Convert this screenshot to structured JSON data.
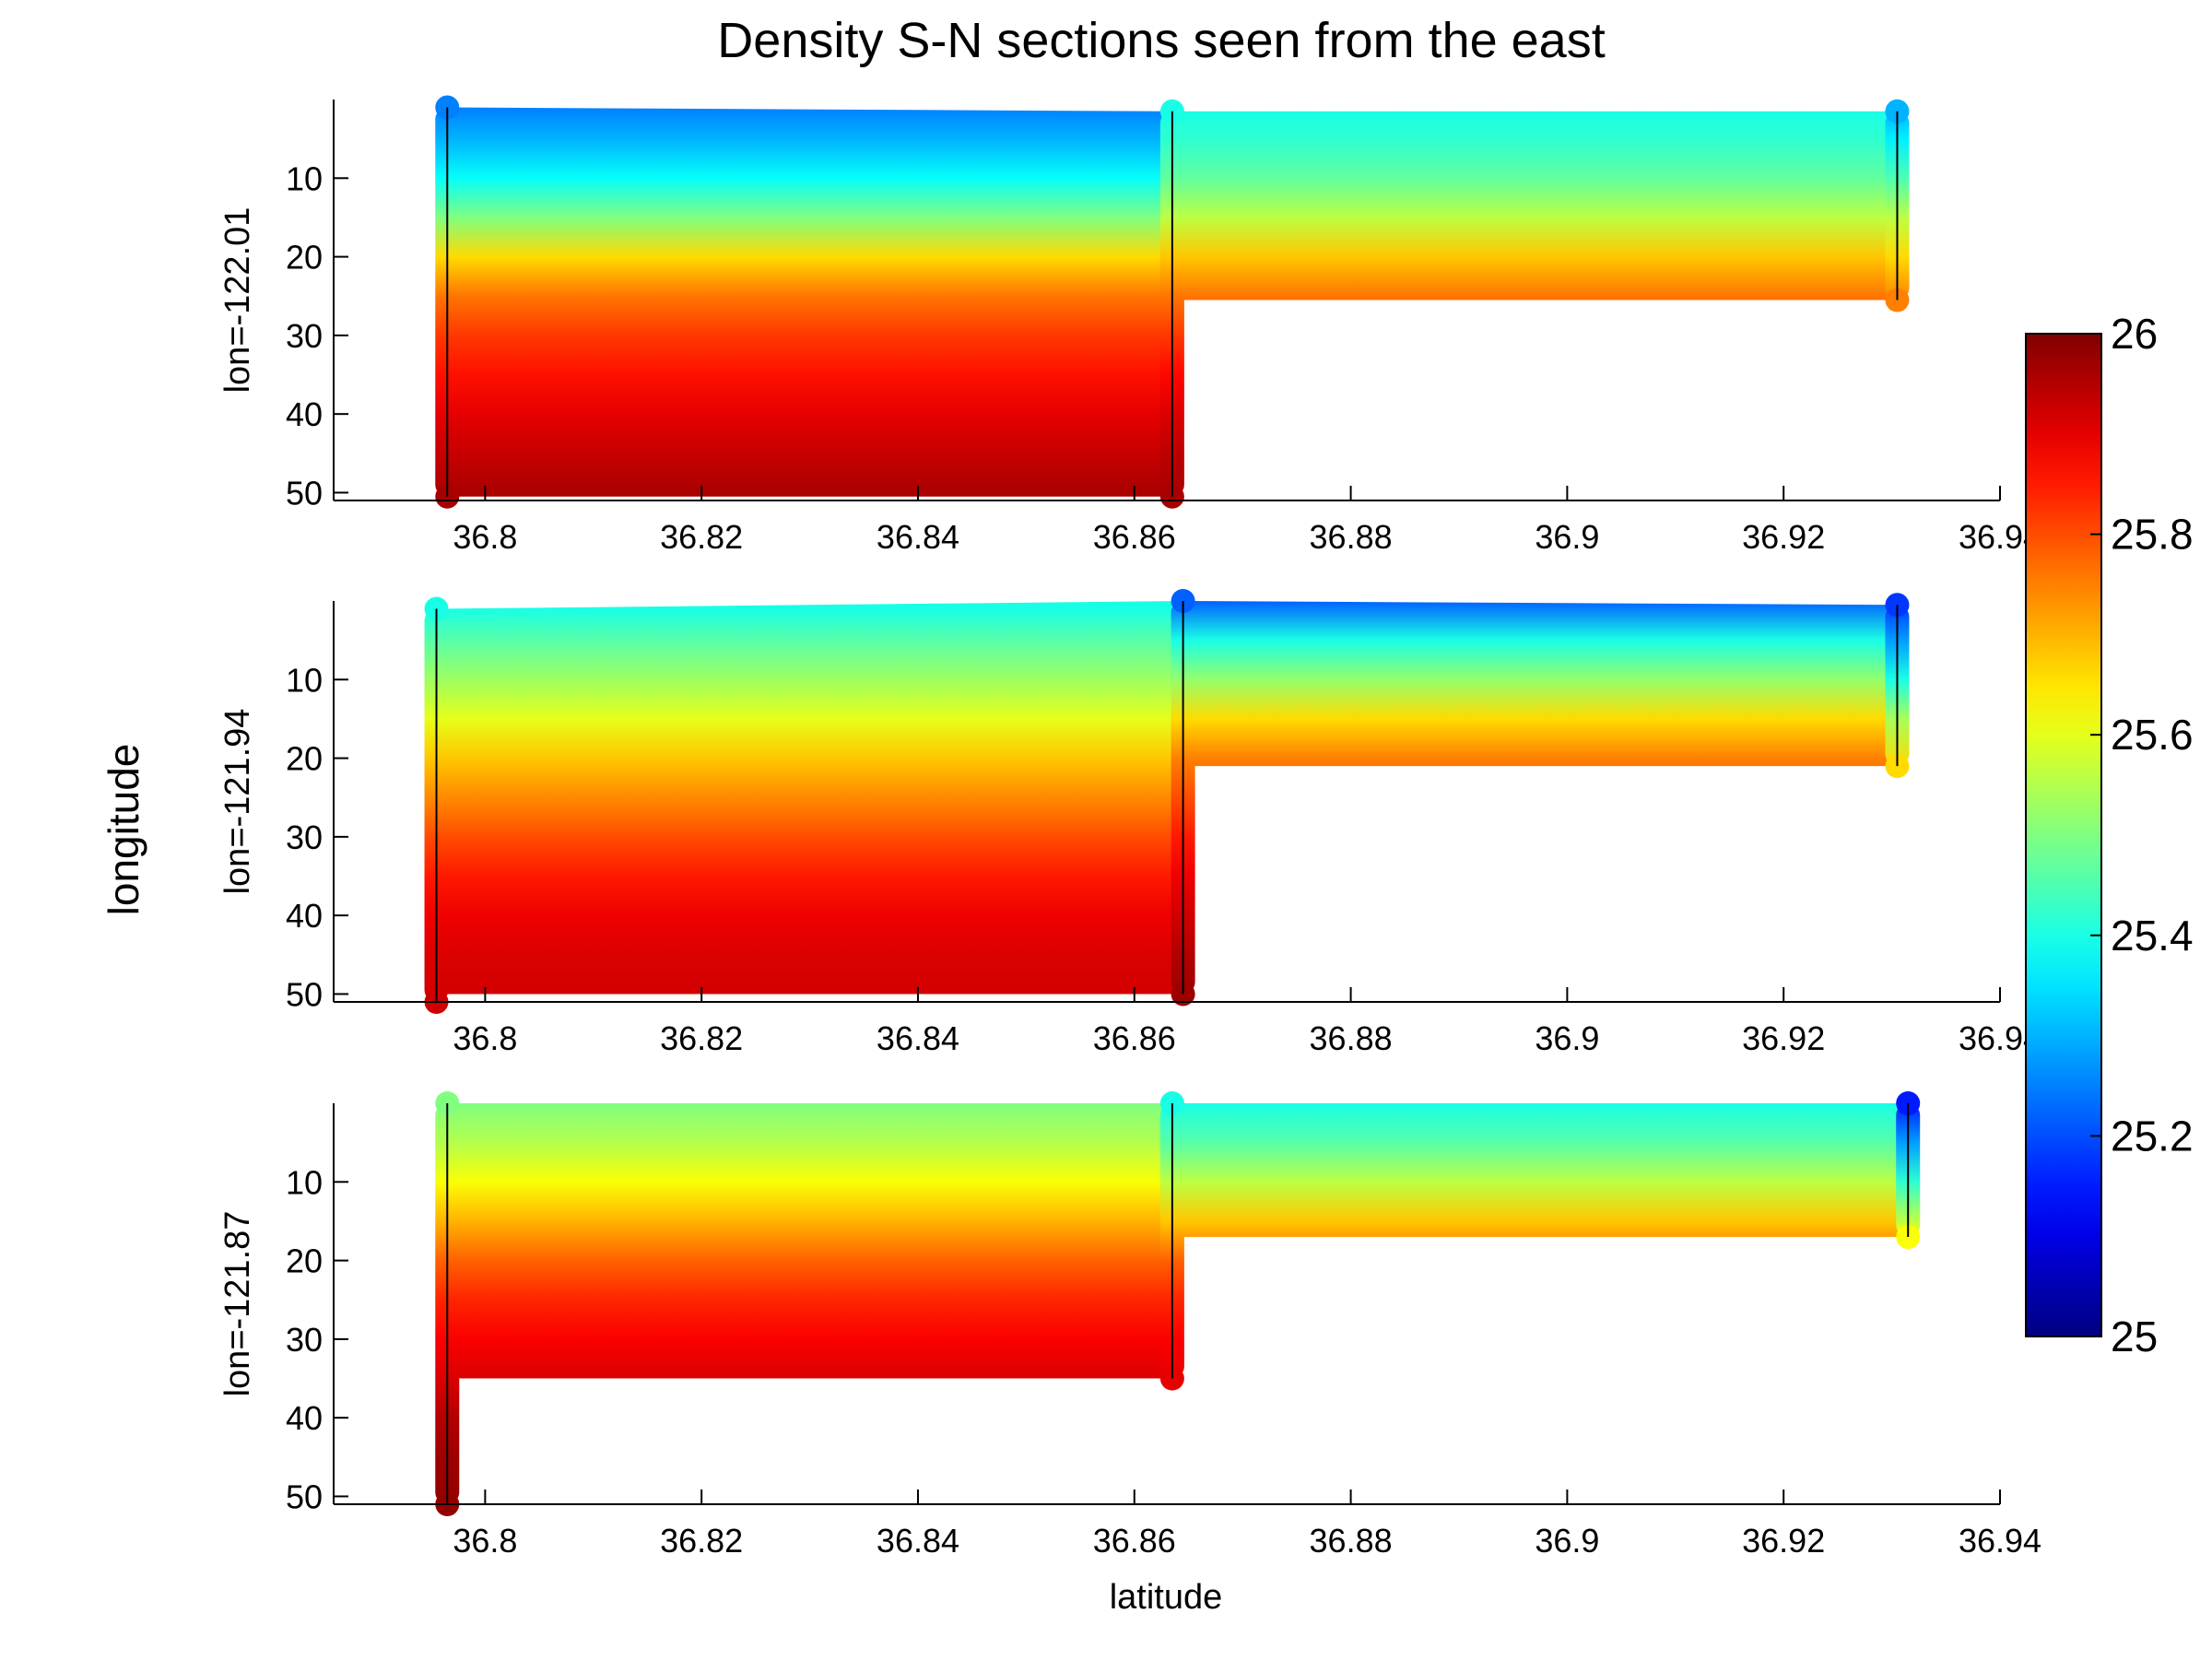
{
  "chart_data": {
    "type": "heatmap",
    "title": "Density S-N sections seen from the east",
    "xlabel": "latitude",
    "common_ylabel": "longitude",
    "xlim": [
      36.786,
      36.94
    ],
    "x_ticks": [
      36.8,
      36.82,
      36.84,
      36.86,
      36.88,
      36.9,
      36.92,
      36.94
    ],
    "x_tick_labels": [
      "36.8",
      "36.82",
      "36.84",
      "36.86",
      "36.88",
      "36.9",
      "36.92",
      "36.94"
    ],
    "ylim": [
      0,
      51
    ],
    "y_reversed": true,
    "y_ticks": [
      10,
      20,
      30,
      40,
      50
    ],
    "y_tick_labels": [
      "10",
      "20",
      "30",
      "40",
      "50"
    ],
    "colorbar": {
      "range": [
        25,
        26
      ],
      "colormap": "jet",
      "ticks": [
        25,
        25.2,
        25.4,
        25.6,
        25.8,
        26
      ],
      "tick_labels": [
        "25",
        "25.2",
        "25.4",
        "25.6",
        "25.8",
        "26"
      ]
    },
    "panels": [
      {
        "ylabel": "lon=-122.01",
        "stations": [
          {
            "lat": 36.7965,
            "depth_top": 1,
            "depth_bottom": 50.5,
            "density_top": 25.25,
            "density_bottom": 25.96,
            "profile": [
              [
                1,
                25.25
              ],
              [
                5,
                25.3
              ],
              [
                10,
                25.38
              ],
              [
                15,
                25.5
              ],
              [
                20,
                25.66
              ],
              [
                25,
                25.76
              ],
              [
                30,
                25.82
              ],
              [
                35,
                25.86
              ],
              [
                40,
                25.9
              ],
              [
                45,
                25.93
              ],
              [
                50.5,
                25.96
              ]
            ]
          },
          {
            "lat": 36.8635,
            "depth_top": 1.5,
            "depth_bottom": 50.5,
            "density_top": 25.4,
            "density_bottom": 25.96,
            "profile": [
              [
                1.5,
                25.4
              ],
              [
                5,
                25.42
              ],
              [
                10,
                25.47
              ],
              [
                15,
                25.56
              ],
              [
                20,
                25.68
              ],
              [
                25,
                25.76
              ],
              [
                30,
                25.82
              ],
              [
                35,
                25.87
              ],
              [
                40,
                25.91
              ],
              [
                45,
                25.94
              ],
              [
                50.5,
                25.96
              ]
            ]
          },
          {
            "lat": 36.9305,
            "depth_top": 1.5,
            "depth_bottom": 25.5,
            "density_top": 25.3,
            "density_bottom": 25.75,
            "profile": [
              [
                1.5,
                25.3
              ],
              [
                5,
                25.36
              ],
              [
                10,
                25.45
              ],
              [
                15,
                25.56
              ],
              [
                20,
                25.66
              ],
              [
                25.5,
                25.75
              ]
            ]
          }
        ]
      },
      {
        "ylabel": "lon=-121.94",
        "stations": [
          {
            "lat": 36.7955,
            "depth_top": 1,
            "depth_bottom": 51,
            "density_top": 25.4,
            "density_bottom": 25.92,
            "profile": [
              [
                1,
                25.4
              ],
              [
                5,
                25.46
              ],
              [
                10,
                25.53
              ],
              [
                15,
                25.6
              ],
              [
                20,
                25.68
              ],
              [
                25,
                25.74
              ],
              [
                30,
                25.8
              ],
              [
                35,
                25.85
              ],
              [
                40,
                25.89
              ],
              [
                45,
                25.91
              ],
              [
                51,
                25.92
              ]
            ]
          },
          {
            "lat": 36.8645,
            "depth_top": 0,
            "depth_bottom": 50,
            "density_top": 25.22,
            "density_bottom": 25.97,
            "profile": [
              [
                0,
                25.22
              ],
              [
                5,
                25.4
              ],
              [
                10,
                25.52
              ],
              [
                15,
                25.66
              ],
              [
                20,
                25.75
              ],
              [
                25,
                25.8
              ],
              [
                30,
                25.85
              ],
              [
                35,
                25.89
              ],
              [
                40,
                25.92
              ],
              [
                45,
                25.95
              ],
              [
                50,
                25.97
              ]
            ]
          },
          {
            "lat": 36.9305,
            "depth_top": 0.5,
            "depth_bottom": 21,
            "density_top": 25.18,
            "density_bottom": 25.66,
            "profile": [
              [
                0.5,
                25.18
              ],
              [
                5,
                25.28
              ],
              [
                10,
                25.4
              ],
              [
                15,
                25.54
              ],
              [
                21,
                25.66
              ]
            ]
          }
        ]
      },
      {
        "ylabel": "lon=-121.87",
        "stations": [
          {
            "lat": 36.7965,
            "depth_top": 0,
            "depth_bottom": 51,
            "density_top": 25.5,
            "density_bottom": 25.98,
            "profile": [
              [
                0,
                25.5
              ],
              [
                5,
                25.55
              ],
              [
                10,
                25.62
              ],
              [
                15,
                25.7
              ],
              [
                20,
                25.78
              ],
              [
                25,
                25.84
              ],
              [
                30,
                25.88
              ],
              [
                35,
                25.91
              ],
              [
                40,
                25.95
              ],
              [
                45,
                25.97
              ],
              [
                51,
                25.98
              ]
            ]
          },
          {
            "lat": 36.8635,
            "depth_top": 0,
            "depth_bottom": 35,
            "density_top": 25.4,
            "density_bottom": 25.9,
            "profile": [
              [
                0,
                25.4
              ],
              [
                5,
                25.46
              ],
              [
                10,
                25.56
              ],
              [
                15,
                25.68
              ],
              [
                20,
                25.78
              ],
              [
                25,
                25.84
              ],
              [
                30,
                25.88
              ],
              [
                35,
                25.9
              ]
            ]
          },
          {
            "lat": 36.9315,
            "depth_top": 0,
            "depth_bottom": 17,
            "density_top": 25.15,
            "density_bottom": 25.62,
            "profile": [
              [
                0,
                25.15
              ],
              [
                5,
                25.28
              ],
              [
                10,
                25.42
              ],
              [
                17,
                25.62
              ]
            ]
          }
        ]
      }
    ]
  }
}
